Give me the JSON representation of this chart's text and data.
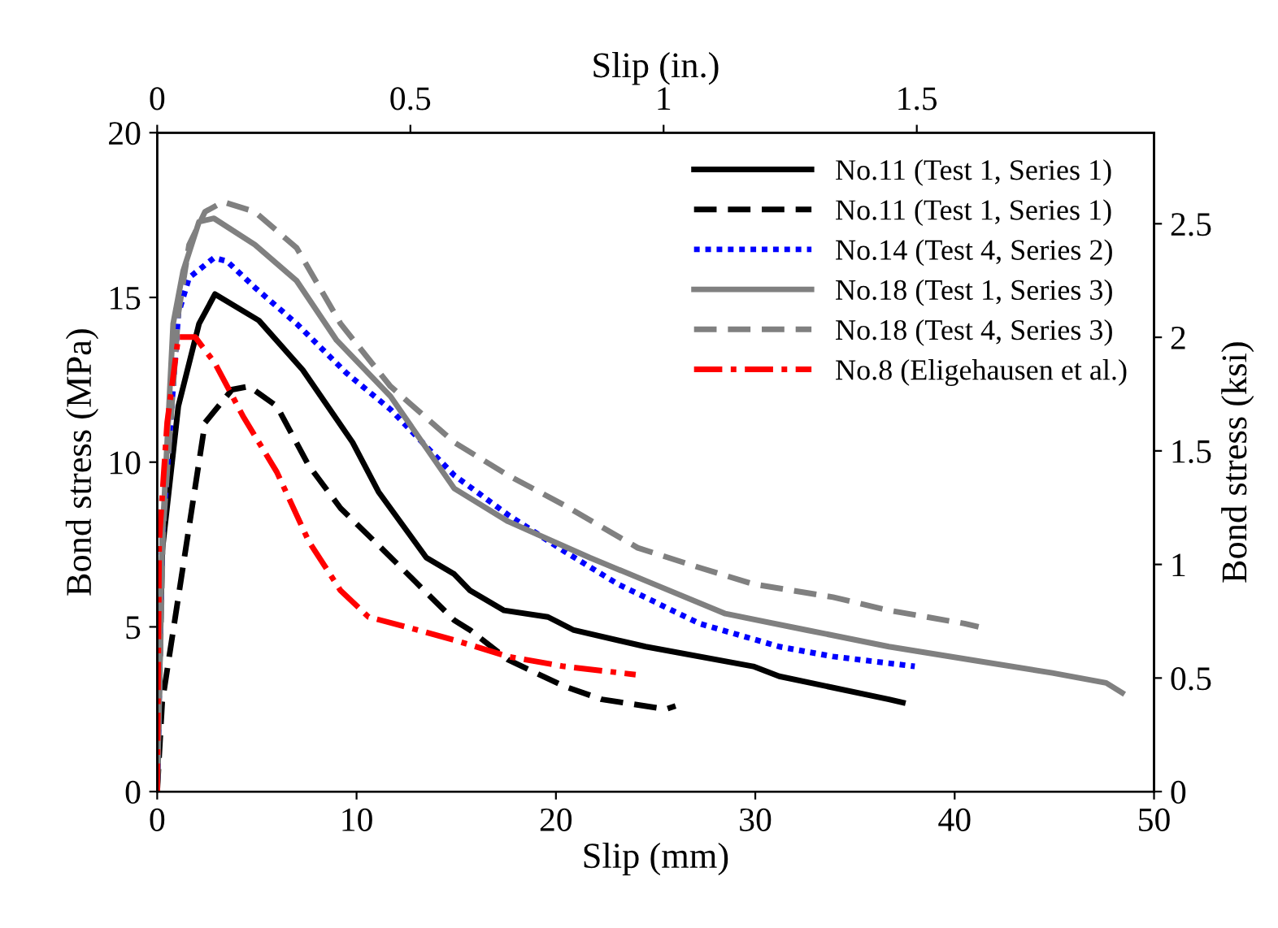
{
  "chart_data": {
    "type": "line",
    "xlabel": "Slip (mm)",
    "ylabel": "Bond stress (MPa)",
    "x2label": "Slip (in.)",
    "y2label": "Bond stress (ksi)",
    "xlim": [
      0,
      50
    ],
    "xticks": [
      0,
      10,
      20,
      30,
      40,
      50
    ],
    "ylim": [
      0,
      20
    ],
    "yticks": [
      0,
      5,
      10,
      15,
      20
    ],
    "x2lim": [
      0,
      1.9685
    ],
    "x2ticks": [
      0,
      0.5,
      1,
      1.5
    ],
    "y2lim": [
      0,
      2.9008
    ],
    "y2ticks": [
      0,
      0.5,
      1,
      1.5,
      2,
      2.5
    ],
    "legend": "top right",
    "grid": false,
    "marker": "none",
    "series": [
      {
        "name": "No.11 (Test 1, Series 1)",
        "color": "#000000",
        "line_style": "solid",
        "x": [
          0,
          0.25,
          1.06,
          2.1,
          2.9,
          5.1,
          7.3,
          9.8,
          11.1,
          13.5,
          14.9,
          15.7,
          17.4,
          19.6,
          20.9,
          24.5,
          29.9,
          31.2,
          36.7,
          37.4
        ],
        "values": [
          0,
          7.3,
          11.7,
          14.2,
          15.1,
          14.3,
          12.8,
          10.6,
          9.1,
          7.1,
          6.6,
          6.1,
          5.5,
          5.3,
          4.9,
          4.4,
          3.8,
          3.5,
          2.8,
          2.7
        ]
      },
      {
        "name": "No.11 (Test 1, Series 1)",
        "color": "#000000",
        "line_style": "dashed",
        "x": [
          0,
          0.25,
          1.06,
          2.4,
          3.75,
          4.6,
          6.0,
          7.6,
          9.2,
          11.4,
          14.9,
          15.7,
          17.6,
          20.4,
          22.3,
          25.5,
          26
        ],
        "values": [
          0,
          2.7,
          5.9,
          11.2,
          12.2,
          12.3,
          11.7,
          9.9,
          8.6,
          7.3,
          5.2,
          4.9,
          4.0,
          3.2,
          2.8,
          2.5,
          2.6
        ]
      },
      {
        "name": "No.14 (Test 4, Series 2)",
        "color": "#0000ff",
        "line_style": "dotted",
        "x": [
          0,
          0.25,
          1.06,
          1.6,
          2.85,
          3.5,
          4.9,
          7.0,
          9.5,
          11.7,
          14.9,
          17.6,
          20.4,
          23.1,
          27.2,
          31.2,
          33.9,
          38.0
        ],
        "values": [
          0,
          7.6,
          14.5,
          15.6,
          16.2,
          16.1,
          15.3,
          14.2,
          12.7,
          11.6,
          9.6,
          8.4,
          7.3,
          6.3,
          5.1,
          4.4,
          4.1,
          3.8
        ]
      },
      {
        "name": "No.18 (Test 1, Series 3)",
        "color": "#808080",
        "line_style": "solid",
        "x": [
          0,
          0.25,
          0.8,
          1.3,
          2.1,
          2.85,
          4.9,
          7.0,
          9.0,
          11.7,
          14.9,
          17.6,
          21.7,
          24.5,
          28.5,
          32.6,
          36.7,
          40.8,
          44.9,
          47.6,
          48.4
        ],
        "values": [
          0,
          7.6,
          14.2,
          15.8,
          17.3,
          17.4,
          16.6,
          15.5,
          13.7,
          12.0,
          9.2,
          8.2,
          7.1,
          6.4,
          5.4,
          4.9,
          4.4,
          4.0,
          3.6,
          3.3,
          3.0
        ]
      },
      {
        "name": "No.18 (Test 4, Series 3)",
        "color": "#808080",
        "line_style": "dashed",
        "x": [
          0,
          0.3,
          1.06,
          1.6,
          2.4,
          3.3,
          4.9,
          7.0,
          9.2,
          11.7,
          14.9,
          17.6,
          20.4,
          24.1,
          27.2,
          29.9,
          33.9,
          36.7,
          40.5,
          41.2
        ],
        "values": [
          0,
          8.0,
          14.5,
          16.6,
          17.6,
          17.9,
          17.6,
          16.5,
          14.2,
          12.3,
          10.6,
          9.6,
          8.7,
          7.4,
          6.8,
          6.3,
          5.9,
          5.5,
          5.1,
          5.0
        ]
      },
      {
        "name": "No.8 (Eligehausen et al.)",
        "color": "#ff0000",
        "line_style": "dashdot",
        "x": [
          0,
          0.1,
          0.5,
          1.06,
          1.9,
          2.9,
          4.3,
          6.0,
          7.6,
          9.2,
          10.6,
          13.1,
          14.9,
          17.6,
          20.4,
          23.3,
          24
        ],
        "values": [
          0,
          7.6,
          11.2,
          13.8,
          13.8,
          13.0,
          11.4,
          9.7,
          7.6,
          6.1,
          5.3,
          4.9,
          4.6,
          4.1,
          3.8,
          3.6,
          3.55
        ]
      }
    ]
  }
}
